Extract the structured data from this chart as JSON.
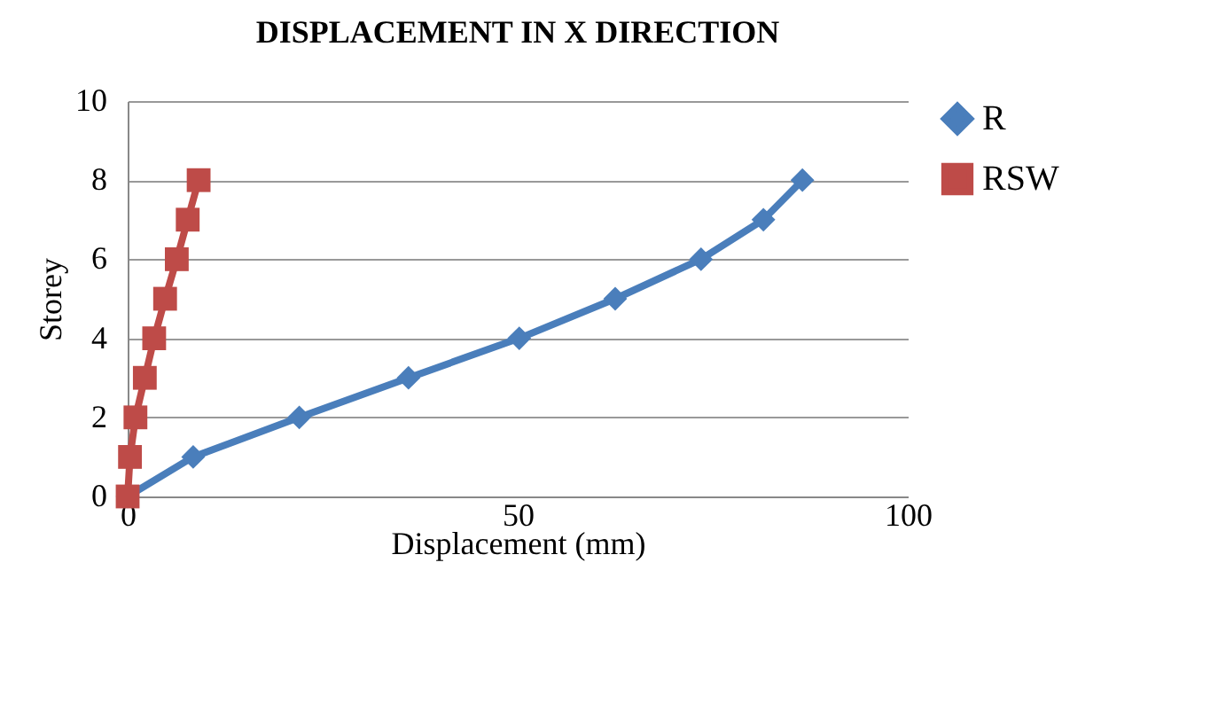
{
  "chart_data": {
    "type": "line",
    "title": "DISPLACEMENT IN X DIRECTION",
    "xlabel": "Displacement (mm)",
    "ylabel": "Storey",
    "xlim": [
      0,
      100
    ],
    "xticks": [
      0,
      50,
      100
    ],
    "ylim": [
      0,
      10
    ],
    "yticks": [
      0,
      2,
      4,
      6,
      8,
      10
    ],
    "grid": "y",
    "legend": "right",
    "series": [
      {
        "name": "R",
        "color": "#4a7ebb",
        "marker": "diamond",
        "x": [
          0,
          8.4,
          22,
          36,
          50.2,
          62.5,
          73.5,
          81.5,
          86.5
        ],
        "values": [
          0,
          1,
          2,
          3,
          4,
          5,
          6,
          7,
          8
        ]
      },
      {
        "name": "RSW",
        "color": "#be4b48",
        "marker": "square",
        "x": [
          0,
          0.3,
          1,
          2.2,
          3.4,
          4.8,
          6.3,
          7.7,
          9.1
        ],
        "values": [
          0,
          1,
          2,
          3,
          4,
          5,
          6,
          7,
          8
        ]
      }
    ]
  }
}
